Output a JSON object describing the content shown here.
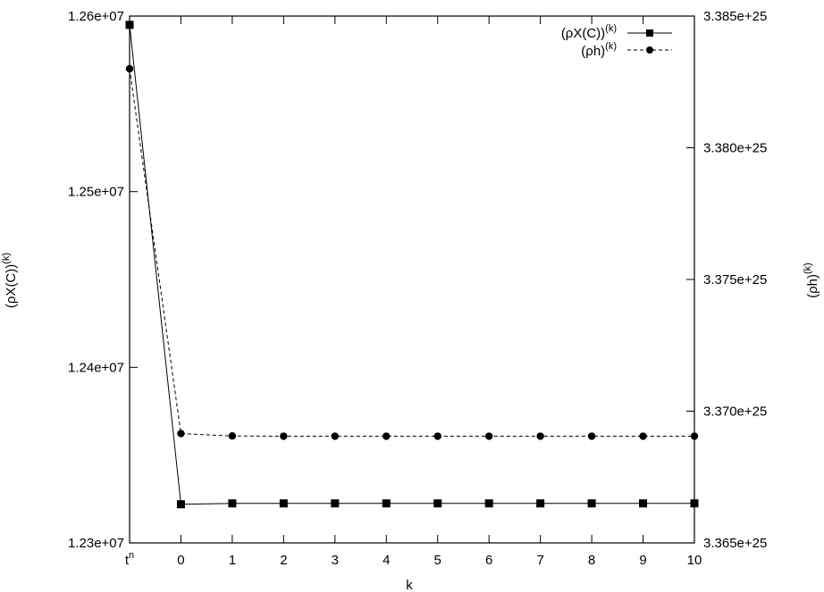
{
  "chart_data": {
    "type": "line",
    "categories": [
      "t",
      "0",
      "1",
      "2",
      "3",
      "4",
      "5",
      "6",
      "7",
      "8",
      "9",
      "10"
    ],
    "first_category_superscript": "n",
    "xlabel": "k",
    "ylabel_left": "(ρX(C))",
    "ylabel_left_sup": "(k)",
    "ylabel_right": "(ρh)",
    "ylabel_right_sup": "(k)",
    "ylim_left": [
      12300000,
      12600000
    ],
    "ylim_right": [
      3.365e+25,
      3.385e+25
    ],
    "yticks_left": [
      "1.23e+07",
      "1.24e+07",
      "1.25e+07",
      "1.26e+07"
    ],
    "yticks_left_values": [
      12300000,
      12400000,
      12500000,
      12600000
    ],
    "yticks_right": [
      "3.365e+25",
      "3.370e+25",
      "3.375e+25",
      "3.380e+25",
      "3.385e+25"
    ],
    "yticks_right_values": [
      3.365e+25,
      3.37e+25,
      3.375e+25,
      3.38e+25,
      3.385e+25
    ],
    "legend_position": "top-right",
    "grid": false,
    "series": [
      {
        "name": "(ρX(C))",
        "name_sup": "(k)",
        "axis": "left",
        "style": "solid",
        "marker": "square",
        "values": [
          12595000,
          12322000,
          12322500,
          12322500,
          12322500,
          12322500,
          12322500,
          12322500,
          12322500,
          12322500,
          12322500,
          12322500
        ]
      },
      {
        "name": "(ρh)",
        "name_sup": "(k)",
        "axis": "right",
        "style": "dashed",
        "marker": "circle",
        "values": [
          3.383e+25,
          3.36915e+25,
          3.36906e+25,
          3.36905e+25,
          3.36905e+25,
          3.36905e+25,
          3.36905e+25,
          3.36905e+25,
          3.36905e+25,
          3.36905e+25,
          3.36905e+25,
          3.36905e+25
        ]
      }
    ]
  }
}
